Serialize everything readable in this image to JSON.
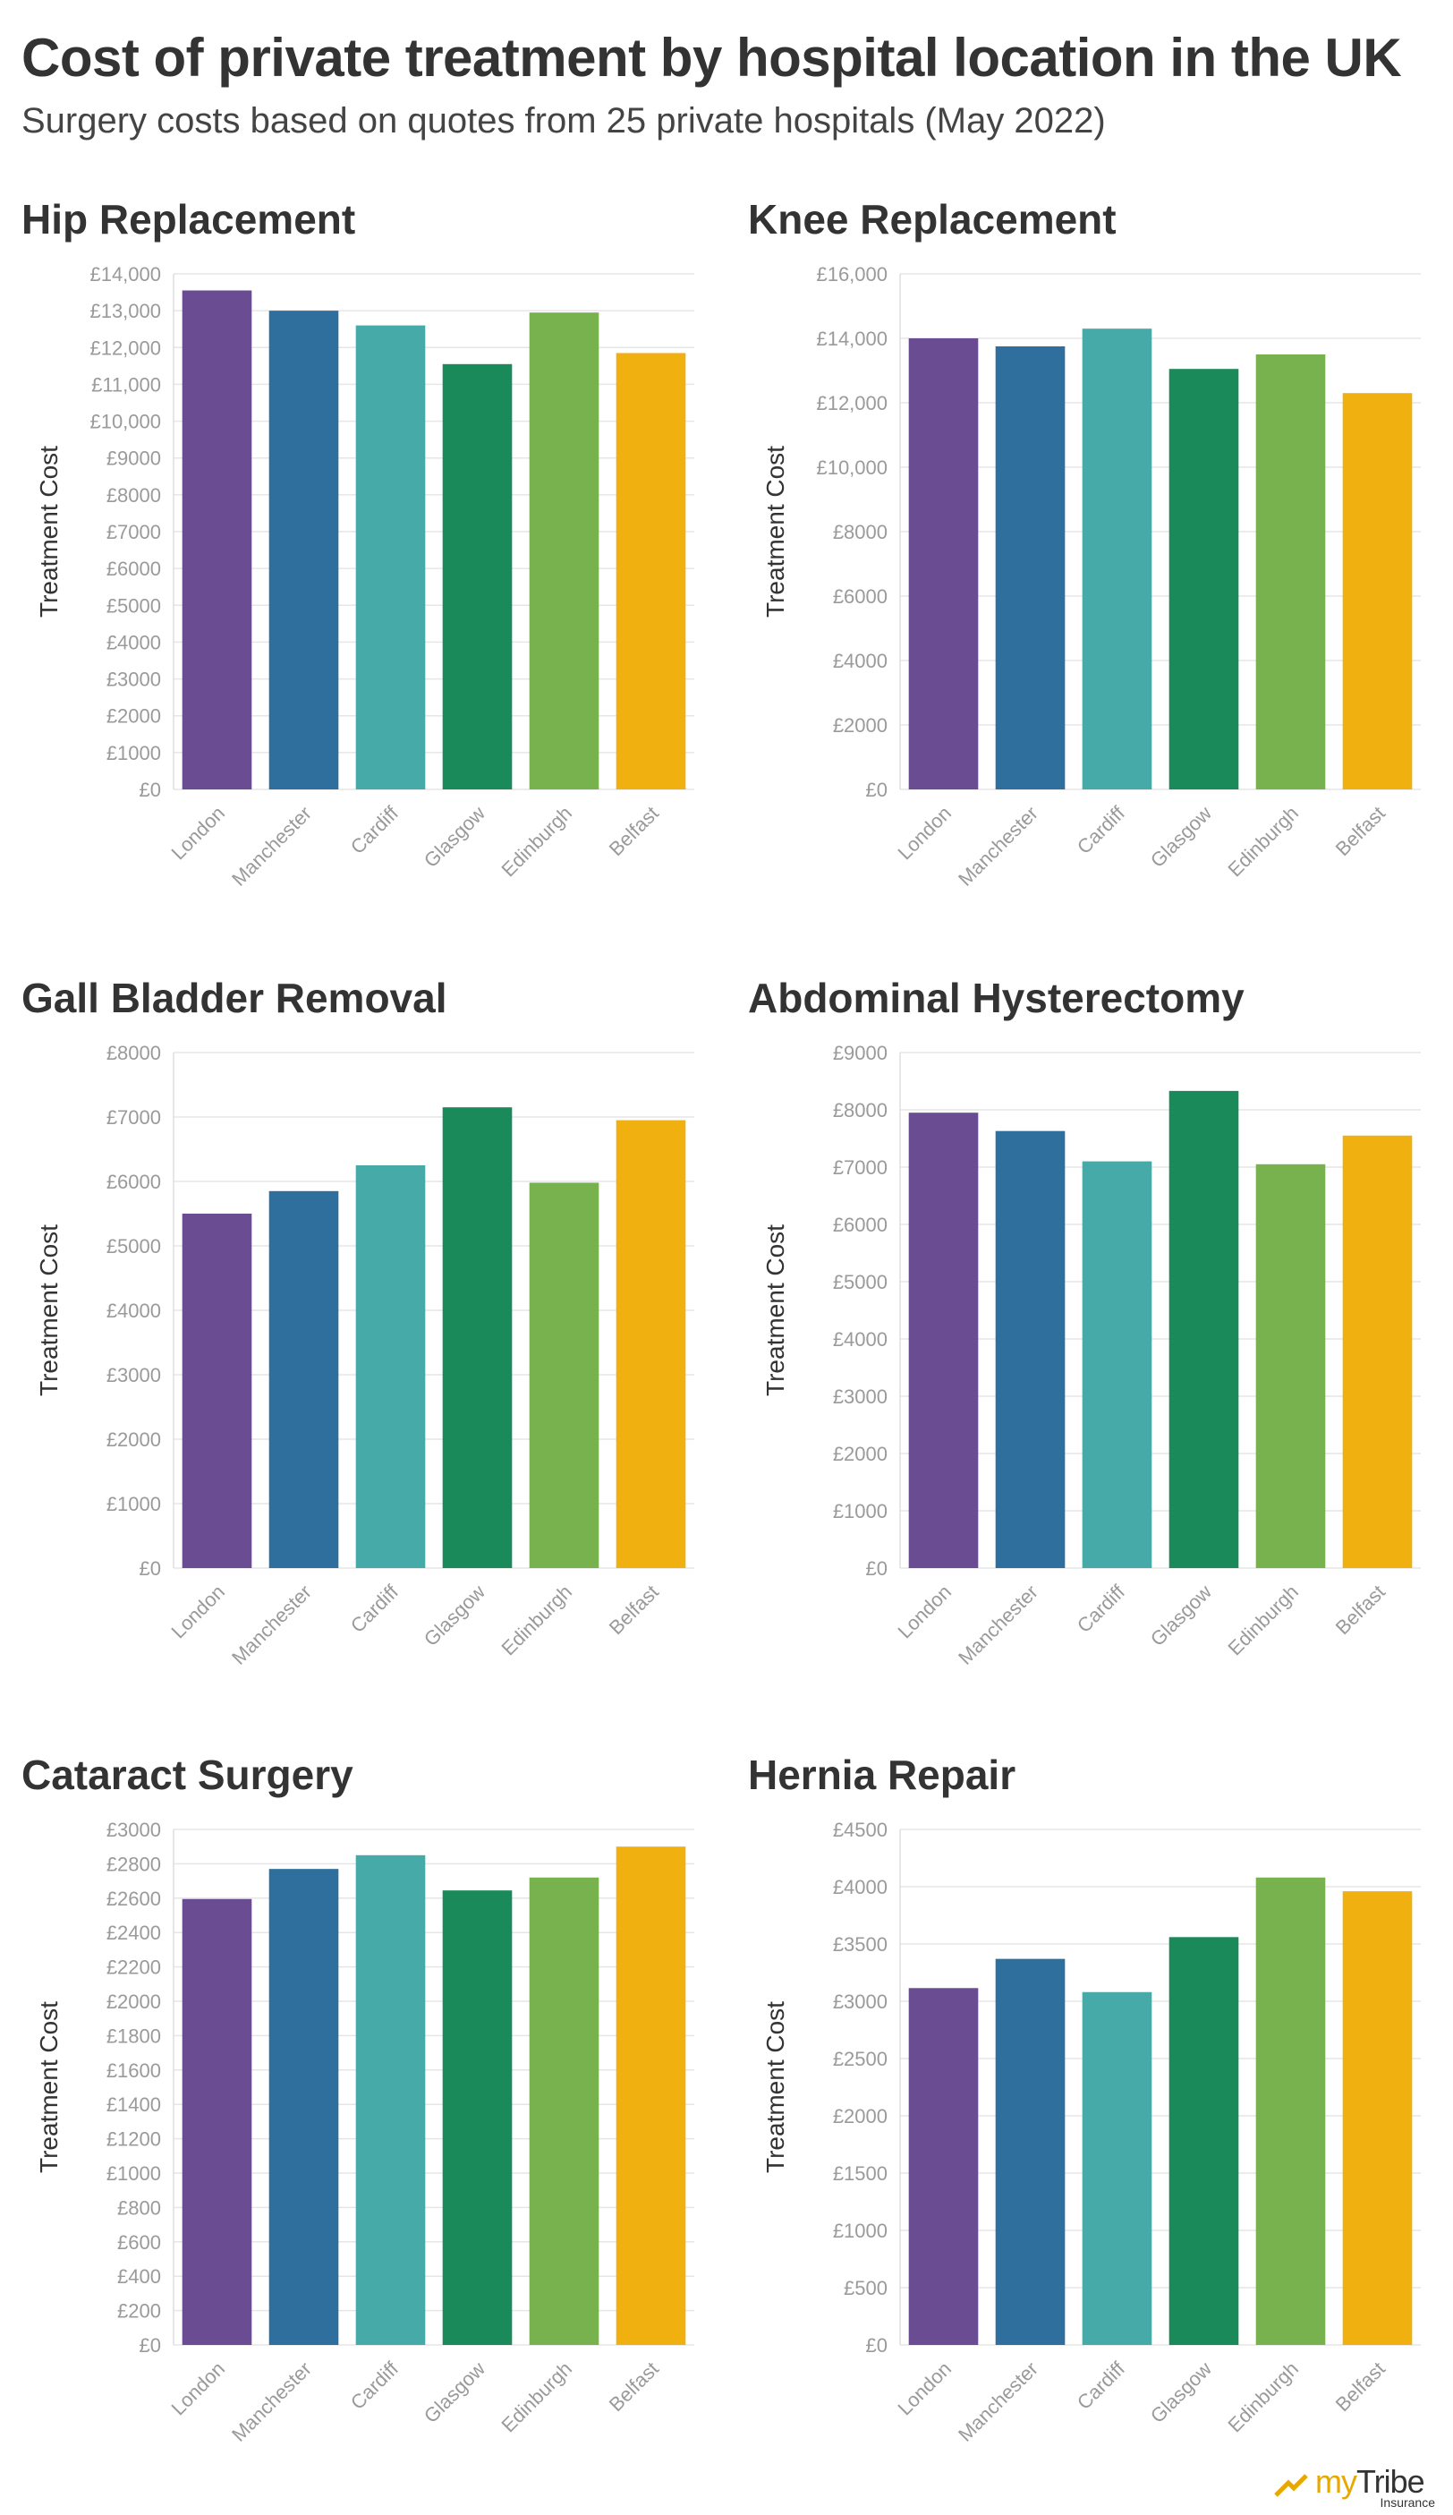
{
  "title": "Cost of private treatment by hospital location in the UK",
  "subtitle": "Surgery costs based on quotes from 25 private hospitals (May 2022)",
  "brand": {
    "name_my": "my",
    "name_tribe": "Tribe",
    "tagline": "Insurance"
  },
  "colors": [
    "#6a4c93",
    "#2e6f9e",
    "#45aaa8",
    "#1b8a5a",
    "#77b24f",
    "#f0b010"
  ],
  "chart_data": [
    {
      "type": "bar",
      "title": "Hip Replacement",
      "ylabel": "Treatment Cost",
      "categories": [
        "London",
        "Manchester",
        "Cardiff",
        "Glasgow",
        "Edinburgh",
        "Belfast"
      ],
      "values": [
        13550,
        13000,
        12600,
        11550,
        12950,
        11850
      ],
      "ylim": [
        0,
        14000
      ],
      "yticks": [
        0,
        1000,
        2000,
        3000,
        4000,
        5000,
        6000,
        7000,
        8000,
        9000,
        10000,
        11000,
        12000,
        13000,
        14000
      ],
      "ytick_labels": [
        "£0",
        "£1000",
        "£2000",
        "£3000",
        "£4000",
        "£5000",
        "£6000",
        "£7000",
        "£8000",
        "£9000",
        "£10,000",
        "£11,000",
        "£12,000",
        "£13,000",
        "£14,000"
      ]
    },
    {
      "type": "bar",
      "title": "Knee Replacement",
      "ylabel": "Treatment Cost",
      "categories": [
        "London",
        "Manchester",
        "Cardiff",
        "Glasgow",
        "Edinburgh",
        "Belfast"
      ],
      "values": [
        14000,
        13750,
        14300,
        13050,
        13500,
        12300
      ],
      "ylim": [
        0,
        16000
      ],
      "yticks": [
        0,
        2000,
        4000,
        6000,
        8000,
        10000,
        12000,
        14000,
        16000
      ],
      "ytick_labels": [
        "£0",
        "£2000",
        "£4000",
        "£6000",
        "£8000",
        "£10,000",
        "£12,000",
        "£14,000",
        "£16,000"
      ]
    },
    {
      "type": "bar",
      "title": "Gall Bladder Removal",
      "ylabel": "Treatment Cost",
      "categories": [
        "London",
        "Manchester",
        "Cardiff",
        "Glasgow",
        "Edinburgh",
        "Belfast"
      ],
      "values": [
        5500,
        5850,
        6250,
        7150,
        5980,
        6950
      ],
      "ylim": [
        0,
        8000
      ],
      "yticks": [
        0,
        1000,
        2000,
        3000,
        4000,
        5000,
        6000,
        7000,
        8000
      ],
      "ytick_labels": [
        "£0",
        "£1000",
        "£2000",
        "£3000",
        "£4000",
        "£5000",
        "£6000",
        "£7000",
        "£8000"
      ]
    },
    {
      "type": "bar",
      "title": "Abdominal Hysterectomy",
      "ylabel": "Treatment Cost",
      "categories": [
        "London",
        "Manchester",
        "Cardiff",
        "Glasgow",
        "Edinburgh",
        "Belfast"
      ],
      "values": [
        7950,
        7630,
        7100,
        8330,
        7050,
        7550
      ],
      "ylim": [
        0,
        9000
      ],
      "yticks": [
        0,
        1000,
        2000,
        3000,
        4000,
        5000,
        6000,
        7000,
        8000,
        9000
      ],
      "ytick_labels": [
        "£0",
        "£1000",
        "£2000",
        "£3000",
        "£4000",
        "£5000",
        "£6000",
        "£7000",
        "£8000",
        "£9000"
      ]
    },
    {
      "type": "bar",
      "title": "Cataract Surgery",
      "ylabel": "Treatment Cost",
      "categories": [
        "London",
        "Manchester",
        "Cardiff",
        "Glasgow",
        "Edinburgh",
        "Belfast"
      ],
      "values": [
        2595,
        2770,
        2850,
        2645,
        2720,
        2900
      ],
      "ylim": [
        0,
        3000
      ],
      "yticks": [
        0,
        200,
        400,
        600,
        800,
        1000,
        1200,
        1400,
        1600,
        1800,
        2000,
        2200,
        2400,
        2600,
        2800,
        3000
      ],
      "ytick_labels": [
        "£0",
        "£200",
        "£400",
        "£600",
        "£800",
        "£1000",
        "£1200",
        "£1400",
        "£1600",
        "£1800",
        "£2000",
        "£2200",
        "£2400",
        "£2600",
        "£2800",
        "£3000"
      ]
    },
    {
      "type": "bar",
      "title": "Hernia Repair",
      "ylabel": "Treatment Cost",
      "categories": [
        "London",
        "Manchester",
        "Cardiff",
        "Glasgow",
        "Edinburgh",
        "Belfast"
      ],
      "values": [
        3115,
        3370,
        3080,
        3560,
        4080,
        3960
      ],
      "ylim": [
        0,
        4500
      ],
      "yticks": [
        0,
        500,
        1000,
        1500,
        2000,
        2500,
        3000,
        3500,
        4000,
        4500
      ],
      "ytick_labels": [
        "£0",
        "£500",
        "£1000",
        "£1500",
        "£2000",
        "£2500",
        "£3000",
        "£3500",
        "£4000",
        "£4500"
      ]
    }
  ]
}
